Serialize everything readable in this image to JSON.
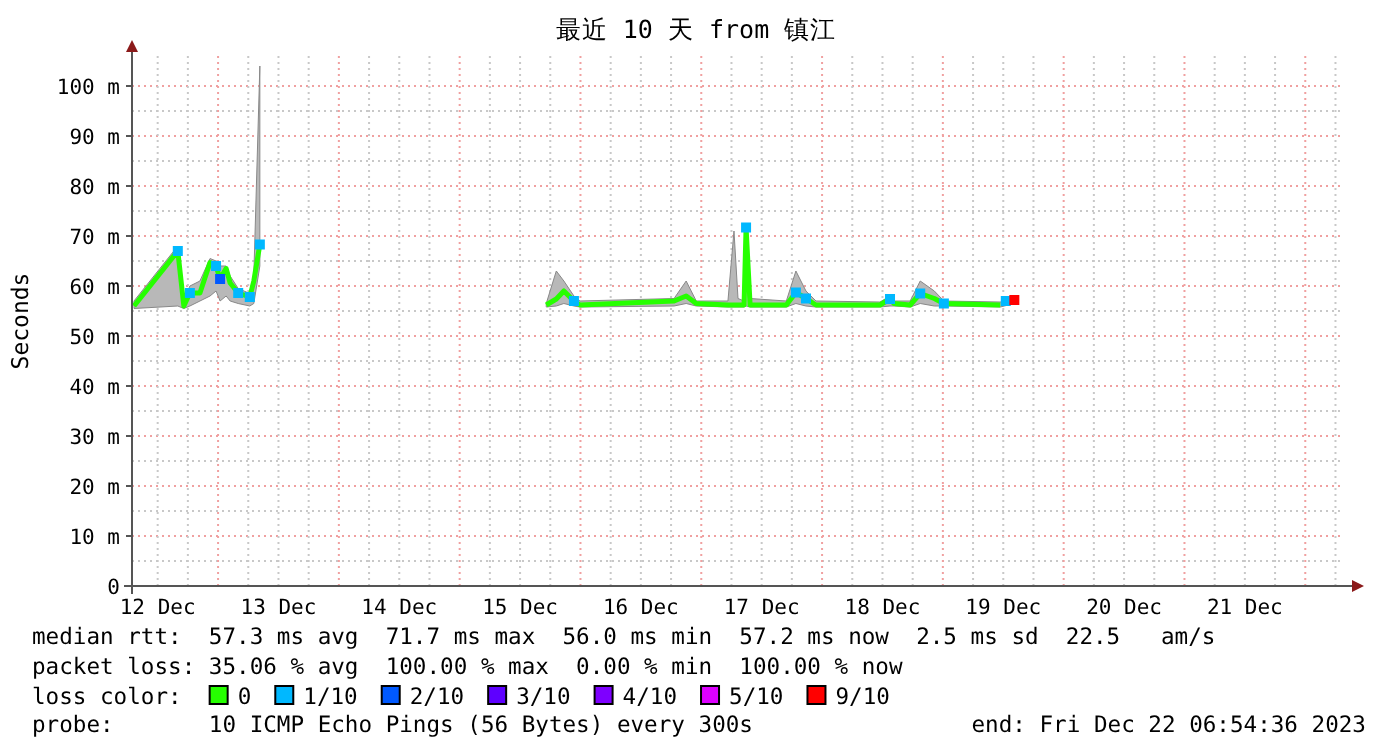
{
  "chart_data": {
    "type": "line",
    "title": "最近 10 天 from 镇江",
    "ylabel": "Seconds",
    "xlim": [
      "2023-12-12T06:54",
      "2023-12-22T06:54"
    ],
    "xticks": [
      {
        "value": "2023-12-12T12:00",
        "label": "12 Dec"
      },
      {
        "value": "2023-12-13T12:00",
        "label": "13 Dec"
      },
      {
        "value": "2023-12-14T12:00",
        "label": "14 Dec"
      },
      {
        "value": "2023-12-15T12:00",
        "label": "15 Dec"
      },
      {
        "value": "2023-12-16T12:00",
        "label": "16 Dec"
      },
      {
        "value": "2023-12-17T12:00",
        "label": "17 Dec"
      },
      {
        "value": "2023-12-18T12:00",
        "label": "18 Dec"
      },
      {
        "value": "2023-12-19T12:00",
        "label": "19 Dec"
      },
      {
        "value": "2023-12-20T12:00",
        "label": "20 Dec"
      },
      {
        "value": "2023-12-21T12:00",
        "label": "21 Dec"
      }
    ],
    "ylim": [
      0,
      106
    ],
    "yticks": [
      0,
      {
        "value": 10,
        "label": "10 m"
      },
      {
        "value": 20,
        "label": "20 m"
      },
      {
        "value": 30,
        "label": "30 m"
      },
      {
        "value": 40,
        "label": "40 m"
      },
      {
        "value": 50,
        "label": "50 m"
      },
      {
        "value": 60,
        "label": "60 m"
      },
      {
        "value": 70,
        "label": "70 m"
      },
      {
        "value": 80,
        "label": "80 m"
      },
      {
        "value": 90,
        "label": "90 m"
      },
      {
        "value": 100,
        "label": "100 m"
      }
    ],
    "grid": true,
    "legend": "bottom",
    "legend_title": "loss color:",
    "series": [
      {
        "name": "0",
        "color": "#26ff00",
        "x": [
          "2023-12-12T07:18",
          "2023-12-12T16:00",
          "2023-12-12T17:12",
          "2023-12-12T18:24",
          "2023-12-12T20:24",
          "2023-12-12T22:24",
          "2023-12-12T23:36",
          "2023-12-13T00:24",
          "2023-12-13T01:36",
          "2023-12-13T02:24",
          "2023-12-13T04:00",
          "2023-12-13T06:18",
          "2023-12-13T07:06",
          "2023-12-13T08:18",
          "2023-12-14T12:00",
          "2023-12-15T17:12",
          "2023-12-15T19:12",
          "2023-12-15T20:42",
          "2023-12-15T22:42",
          "2023-12-15T23:54",
          "2023-12-16T18:36",
          "2023-12-16T21:00",
          "2023-12-16T23:00",
          "2023-12-17T05:18",
          "2023-12-17T06:30",
          "2023-12-17T07:18",
          "2023-12-17T08:30",
          "2023-12-17T08:54",
          "2023-12-17T09:42",
          "2023-12-17T16:54",
          "2023-12-17T18:48",
          "2023-12-17T20:48",
          "2023-12-17T22:48",
          "2023-12-18T11:30",
          "2023-12-18T13:30",
          "2023-12-18T14:18",
          "2023-12-18T17:30",
          "2023-12-18T19:30",
          "2023-12-18T22:18",
          "2023-12-19T00:12",
          "2023-12-19T11:24",
          "2023-12-19T14:12"
        ],
        "values": [
          56,
          67,
          56,
          58.6,
          58.6,
          64.7,
          64,
          61.4,
          63.5,
          60.6,
          58.6,
          57.8,
          61,
          68.3,
          null,
          56.2,
          57.4,
          59,
          57,
          56.2,
          57,
          58,
          56.5,
          56.2,
          56.2,
          56.2,
          56.2,
          71.7,
          56.2,
          56.2,
          58.7,
          57.5,
          56.2,
          56.2,
          57.4,
          56.5,
          56.2,
          58.5,
          57.5,
          56.5,
          56.2,
          null
        ],
        "lower": [
          55.5,
          56,
          55.5,
          56,
          57,
          58,
          59,
          57,
          58,
          57,
          56.5,
          56,
          56.5,
          64,
          null,
          55.8,
          56,
          56.5,
          56,
          55.8,
          56,
          56.5,
          56,
          55.8,
          55.8,
          55.8,
          55.8,
          56,
          55.8,
          55.8,
          56.5,
          56,
          55.8,
          55.8,
          56,
          56,
          55.8,
          56.5,
          56,
          56,
          55.8,
          56.5
        ],
        "upper": [
          57,
          68,
          57,
          60,
          61,
          65.5,
          65,
          64,
          64,
          62,
          59.5,
          58.5,
          62,
          104,
          null,
          56.5,
          63,
          61,
          58,
          57,
          57.5,
          61,
          57,
          57,
          71,
          57.5,
          57,
          72,
          57.5,
          57,
          63,
          59,
          57,
          56.8,
          58,
          57,
          57,
          61,
          59,
          57,
          56.8,
          57.5
        ]
      },
      {
        "name": "1/10",
        "color": "#00b8ff",
        "type": "scatter",
        "x": [
          "2023-12-12T16:00",
          "2023-12-12T18:24",
          "2023-12-12T23:36",
          "2023-12-13T04:00",
          "2023-12-13T06:18",
          "2023-12-13T08:18",
          "2023-12-15T22:42",
          "2023-12-17T08:54",
          "2023-12-17T18:48",
          "2023-12-17T20:48",
          "2023-12-18T13:30",
          "2023-12-18T19:30",
          "2023-12-19T00:12",
          "2023-12-19T12:30"
        ],
        "values": [
          67,
          58.6,
          64,
          58.6,
          57.8,
          68.3,
          57,
          71.7,
          58.7,
          57.5,
          57.4,
          58.5,
          56.5,
          57
        ]
      },
      {
        "name": "2/10",
        "color": "#0059ff",
        "type": "scatter",
        "x": [
          "2023-12-13T00:24"
        ],
        "values": [
          61.4
        ]
      },
      {
        "name": "3/10",
        "color": "#5e00ff",
        "type": "scatter"
      },
      {
        "name": "4/10",
        "color": "#7e00ff",
        "type": "scatter"
      },
      {
        "name": "5/10",
        "color": "#dd00ff",
        "type": "scatter"
      },
      {
        "name": "9/10",
        "color": "#ff0000",
        "type": "scatter",
        "x": [
          "2023-12-19T14:12"
        ],
        "values": [
          57.2
        ]
      }
    ],
    "annotations": [
      "median rtt:  57.3 ms avg  71.7 ms max  56.0 ms min  57.2 ms now  2.5 ms sd  22.5   am/s",
      "packet loss: 35.06 % avg  100.00 % max  0.00 % min  100.00 % now",
      "probe:       10 ICMP Echo Pings (56 Bytes) every 300s",
      "end: Fri Dec 22 06:54:36 2023"
    ]
  }
}
